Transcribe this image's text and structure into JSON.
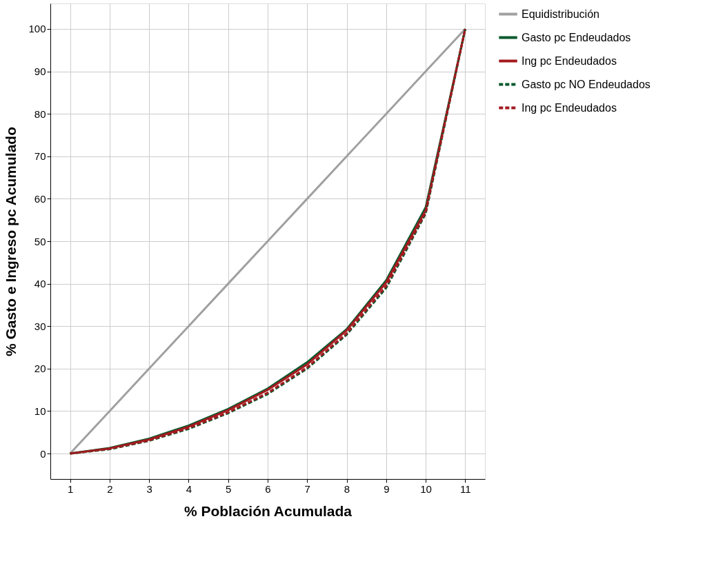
{
  "chart_data": {
    "type": "line",
    "xlabel": "% Población Acumulada",
    "ylabel": "% Gasto e Ingreso pc Acumulado",
    "x": [
      1,
      2,
      3,
      4,
      5,
      6,
      7,
      8,
      9,
      10,
      11
    ],
    "xlim": [
      0.5,
      11.5
    ],
    "xticks": [
      1,
      2,
      3,
      4,
      5,
      6,
      7,
      8,
      9,
      10,
      11
    ],
    "ylim": [
      -6,
      106
    ],
    "yticks": [
      0,
      10,
      20,
      30,
      40,
      50,
      60,
      70,
      80,
      90,
      100
    ],
    "grid": true,
    "legend": "right",
    "marker": "none",
    "series": [
      {
        "name": "Equidistribución",
        "color": "#a0a0a0",
        "line_style": "solid",
        "values": [
          0,
          10,
          20,
          30,
          40,
          50,
          60,
          70,
          80,
          90,
          100
        ]
      },
      {
        "name": "Gasto pc Endeudados",
        "color": "#0b5a2e",
        "line_style": "solid",
        "values": [
          0,
          1.3,
          3.5,
          6.6,
          10.5,
          15.3,
          21.5,
          29.3,
          40.8,
          58,
          100
        ]
      },
      {
        "name": "Ing pc Endeudados",
        "color": "#a31a1f",
        "line_style": "solid",
        "values": [
          0,
          1.2,
          3.3,
          6.3,
          10.2,
          15,
          21,
          29,
          40.3,
          57.3,
          100
        ]
      },
      {
        "name": "Gasto pc NO Endeudados",
        "color": "#0b5a2e",
        "line_style": "dashed",
        "values": [
          0,
          1,
          3,
          5.8,
          9.5,
          14,
          20,
          28,
          39,
          56.5,
          100
        ]
      },
      {
        "name": "Ing pc Endeudados",
        "color": "#a31a1f",
        "line_style": "dashed",
        "values": [
          0,
          1.1,
          3.1,
          6,
          9.7,
          14.3,
          20.3,
          28.3,
          39.5,
          56.8,
          100
        ]
      }
    ]
  }
}
